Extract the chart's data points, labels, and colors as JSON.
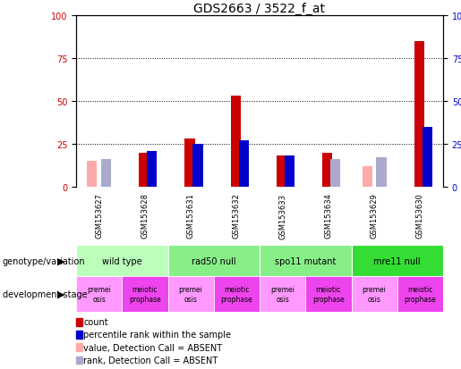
{
  "title": "GDS2663 / 3522_f_at",
  "samples": [
    "GSM153627",
    "GSM153628",
    "GSM153631",
    "GSM153632",
    "GSM153633",
    "GSM153634",
    "GSM153629",
    "GSM153630"
  ],
  "count_values": [
    0,
    20,
    28,
    53,
    18,
    20,
    0,
    85
  ],
  "rank_values": [
    0,
    21,
    25,
    27,
    18,
    0,
    0,
    35
  ],
  "absent_value_values": [
    15,
    0,
    0,
    0,
    0,
    0,
    12,
    0
  ],
  "absent_rank_values": [
    16,
    0,
    0,
    0,
    0,
    16,
    17,
    0
  ],
  "bar_width": 0.22,
  "ylim": [
    0,
    100
  ],
  "yticks": [
    0,
    25,
    50,
    75,
    100
  ],
  "grid_values": [
    25,
    50,
    75
  ],
  "color_count": "#cc0000",
  "color_rank": "#0000cc",
  "color_absent_value": "#ffaaaa",
  "color_absent_rank": "#aaaacc",
  "genotype_groups": [
    {
      "label": "wild type",
      "start": 0,
      "end": 2,
      "color": "#bbffbb"
    },
    {
      "label": "rad50 null",
      "start": 2,
      "end": 4,
      "color": "#88ee88"
    },
    {
      "label": "spo11 mutant",
      "start": 4,
      "end": 6,
      "color": "#88ee88"
    },
    {
      "label": "mre11 null",
      "start": 6,
      "end": 8,
      "color": "#33dd33"
    }
  ],
  "dev_stage_labels": [
    "premei\nosis",
    "meiotic\nprophase",
    "premei\nosis",
    "meiotic\nprophase",
    "premei\nosis",
    "meiotic\nprophase",
    "premei\nosis",
    "meiotic\nprophase"
  ],
  "dev_premei_color": "#ff99ff",
  "dev_meiotic_color": "#ee44ee",
  "title_fontsize": 10,
  "tick_fontsize": 7,
  "sample_fontsize": 6,
  "geno_fontsize": 7,
  "dev_fontsize": 5.5,
  "legend_fontsize": 7
}
